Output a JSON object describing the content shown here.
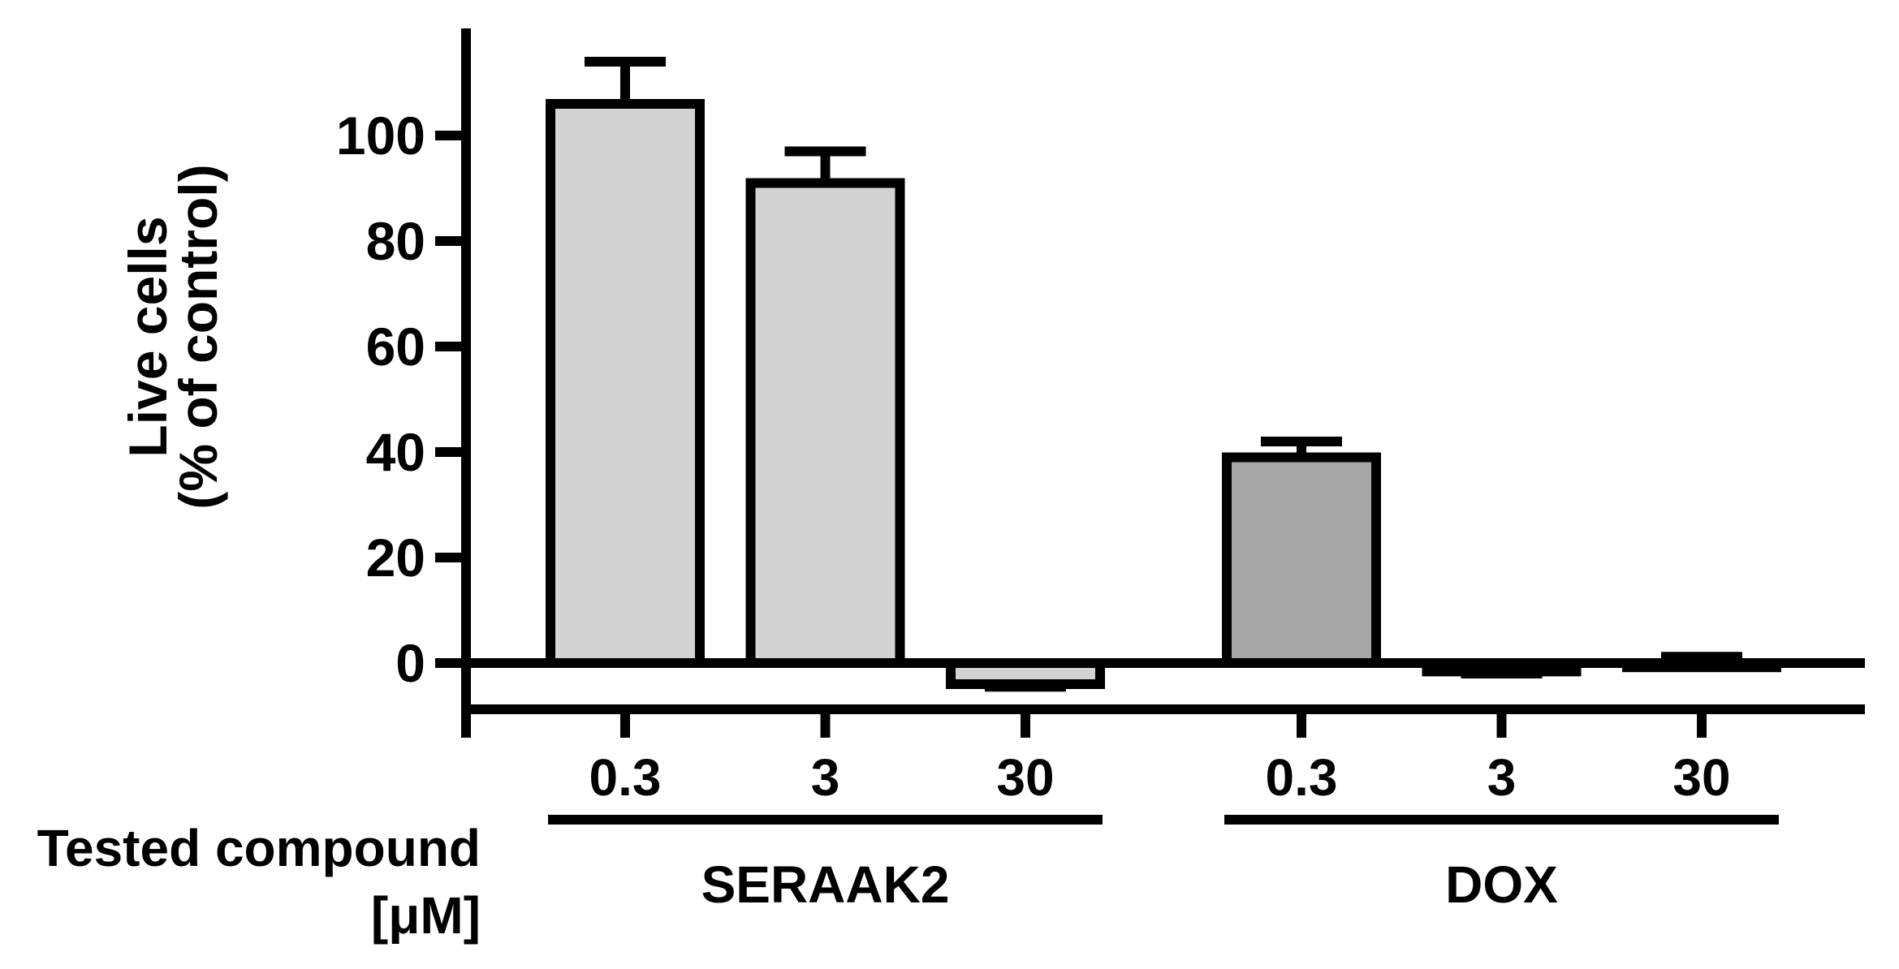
{
  "figure": {
    "background": "#ffffff",
    "ink_color": "#000000"
  },
  "chart_data": {
    "type": "bar",
    "title": "",
    "ylabel_lines": [
      "Live cells",
      "(% of control)"
    ],
    "xlabel_lines": [
      "Tested compound",
      "[μM]"
    ],
    "yticks": [
      0,
      20,
      40,
      60,
      80,
      100
    ],
    "ylim": [
      -10,
      120
    ],
    "grid": false,
    "legend_position": "none",
    "bar_border_color": "#000000",
    "groups": [
      {
        "name": "SERAAK2",
        "bar_fill": "#d3d3d3",
        "categories": [
          "0.3",
          "3",
          "30"
        ],
        "values": [
          106,
          91,
          -4
        ],
        "errors": [
          8,
          6,
          0.5
        ],
        "error_directions": [
          "up",
          "up",
          "down"
        ]
      },
      {
        "name": "DOX",
        "bar_fill": "#a6a6a6",
        "categories": [
          "0.3",
          "3",
          "30"
        ],
        "values": [
          39,
          -1.6,
          -0.8
        ],
        "errors": [
          3,
          0.4,
          2
        ],
        "error_directions": [
          "up",
          "down",
          "up"
        ]
      }
    ]
  }
}
